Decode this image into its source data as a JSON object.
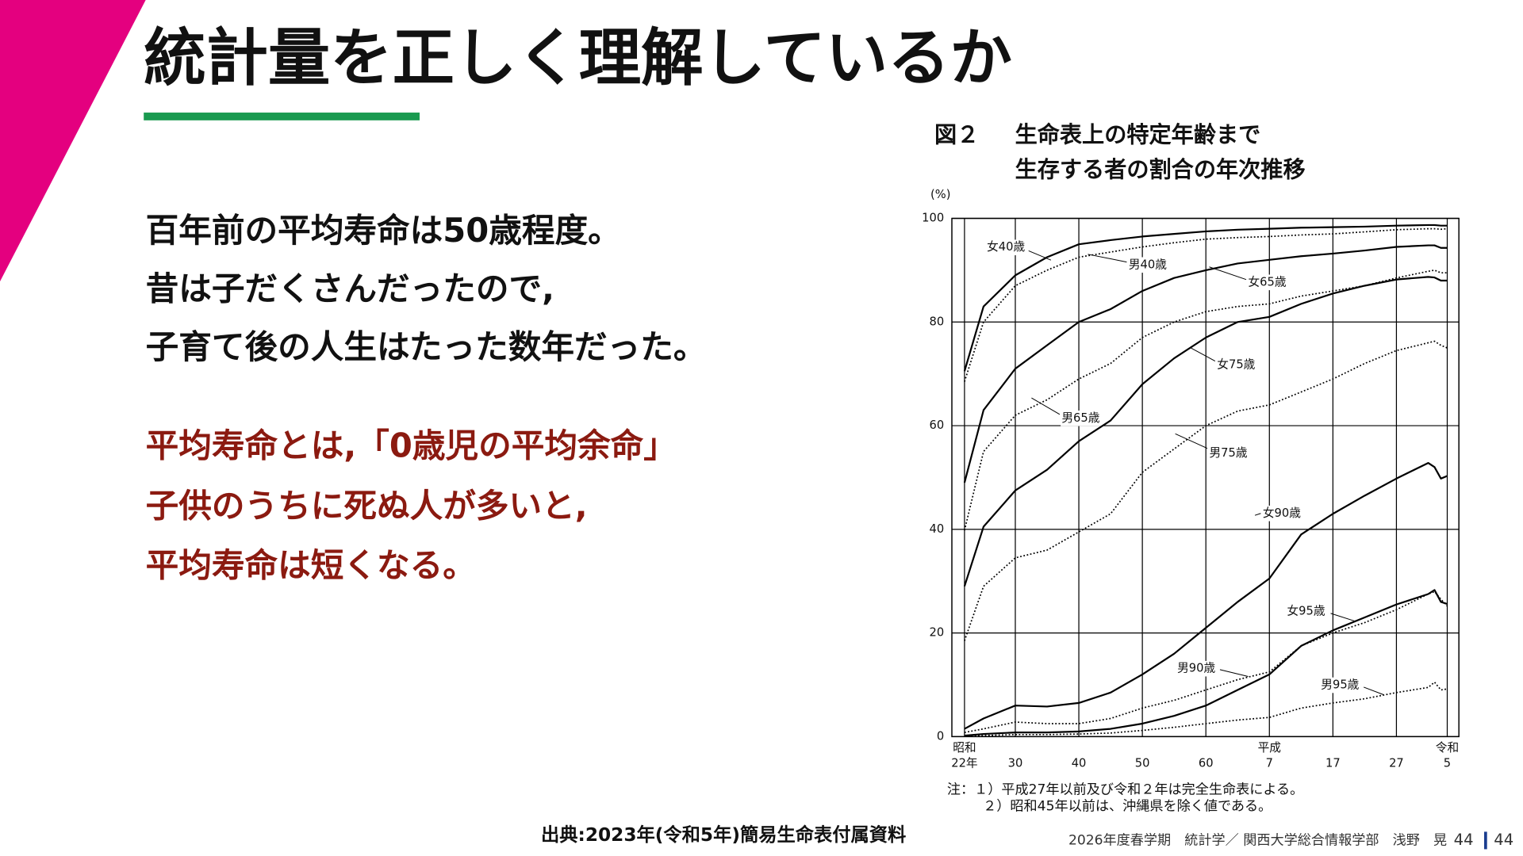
{
  "slide": {
    "title": "統計量を正しく理解しているか",
    "body_lines": [
      "百年前の平均寿命は50歳程度。",
      "昔は子だくさんだったので,",
      "子育て後の人生はたった数年だった。"
    ],
    "emphasis_lines": [
      "平均寿命とは,「0歳児の平均余命」",
      "子供のうちに死ぬ人が多いと,",
      "平均寿命は短くなる。"
    ],
    "source": "出典:2023年(令和5年)簡易生命表付属資料",
    "footer": "2026年度春学期　統計学／ 関西大学総合情報学部　浅野　晃",
    "page": {
      "current": "44",
      "total": "44"
    }
  },
  "chart_data": {
    "type": "line",
    "figure_label": "図２",
    "title_lines": [
      "生命表上の特定年齢まで",
      "生存する者の割合の年次推移"
    ],
    "y_label": "(%)",
    "notes": [
      "注：１）平成27年以前及び令和２年は完全生命表による。",
      "２）昭和45年以前は、沖縄県を除く値である。"
    ],
    "x": [
      1947,
      1950,
      1955,
      1960,
      1965,
      1970,
      1975,
      1980,
      1985,
      1990,
      1995,
      2000,
      2005,
      2010,
      2015,
      2020,
      2021,
      2022,
      2023
    ],
    "xlim": [
      1947,
      2023
    ],
    "xticks": [
      {
        "value": 1947,
        "label": "昭和\n22年"
      },
      {
        "value": 1955,
        "label": "30"
      },
      {
        "value": 1965,
        "label": "40"
      },
      {
        "value": 1975,
        "label": "50"
      },
      {
        "value": 1985,
        "label": "60"
      },
      {
        "value": 1995,
        "label": "平成\n7"
      },
      {
        "value": 2005,
        "label": "17"
      },
      {
        "value": 2015,
        "label": "27"
      },
      {
        "value": 2023,
        "label": "令和\n5"
      }
    ],
    "ylim": [
      0,
      100
    ],
    "yticks": [
      0,
      20,
      40,
      60,
      80,
      100
    ],
    "grid": true,
    "series": [
      {
        "name": "女40歳",
        "color": "#000000",
        "style": "solid",
        "values": [
          70.5,
          83,
          89,
          92.5,
          95,
          95.8,
          96.5,
          97,
          97.5,
          97.8,
          98,
          98.2,
          98.3,
          98.4,
          98.6,
          98.7,
          98.7,
          98.6,
          98.6
        ]
      },
      {
        "name": "男40歳",
        "color": "#000000",
        "style": "dotted",
        "values": [
          68.5,
          80,
          87,
          90,
          92.5,
          93.5,
          94.5,
          95.3,
          96,
          96.3,
          96.5,
          96.8,
          97,
          97.4,
          97.8,
          98,
          98,
          97.9,
          98
        ]
      },
      {
        "name": "女65歳",
        "color": "#000000",
        "style": "solid",
        "values": [
          49,
          63,
          71,
          75.5,
          80,
          82.5,
          86,
          88.5,
          90,
          91.3,
          92,
          92.7,
          93.2,
          93.8,
          94.5,
          94.8,
          94.8,
          94.3,
          94.3
        ]
      },
      {
        "name": "男65歳",
        "color": "#000000",
        "style": "dotted",
        "values": [
          39.8,
          55,
          62,
          65,
          69,
          72,
          77,
          80,
          82,
          83,
          83.5,
          85,
          86,
          87,
          88.5,
          89.8,
          90,
          89.5,
          89.5
        ]
      },
      {
        "name": "女75歳",
        "color": "#000000",
        "style": "solid",
        "values": [
          29,
          40.5,
          47.5,
          51.5,
          57,
          61,
          68,
          73,
          77,
          80,
          81,
          83.5,
          85.5,
          87,
          88.2,
          88.7,
          88.6,
          88,
          88
        ]
      },
      {
        "name": "男75歳",
        "color": "#000000",
        "style": "dotted",
        "values": [
          18.5,
          29,
          34.5,
          36,
          39.5,
          43,
          51,
          55.5,
          60,
          62.8,
          64,
          66.5,
          69,
          72,
          74.5,
          76,
          76.3,
          75.5,
          75
        ]
      },
      {
        "name": "女90歳",
        "color": "#000000",
        "style": "solid",
        "values": [
          1.5,
          3.5,
          6,
          5.8,
          6.5,
          8.5,
          12,
          16,
          21,
          26,
          30.5,
          39,
          43,
          46.5,
          49.8,
          52.8,
          52,
          49.8,
          50.3
        ]
      },
      {
        "name": "男90歳",
        "color": "#000000",
        "style": "dotted",
        "values": [
          0.8,
          1.5,
          2.8,
          2.5,
          2.5,
          3.5,
          5.5,
          7,
          9,
          11,
          12.5,
          17.5,
          20,
          22,
          24.5,
          27.5,
          28,
          26.5,
          25.2
        ]
      },
      {
        "name": "女95歳",
        "color": "#000000",
        "style": "solid",
        "values": [
          0.2,
          0.5,
          0.8,
          0.8,
          1,
          1.5,
          2.5,
          4,
          6,
          9,
          12,
          17.5,
          20.5,
          23,
          25.5,
          27.5,
          28.3,
          26,
          25.6
        ]
      },
      {
        "name": "男95歳",
        "color": "#000000",
        "style": "dotted",
        "values": [
          0.1,
          0.2,
          0.4,
          0.4,
          0.5,
          0.7,
          1.2,
          1.8,
          2.5,
          3.2,
          3.7,
          5.5,
          6.5,
          7.3,
          8.5,
          9.5,
          10.5,
          9,
          9.2
        ]
      }
    ]
  }
}
